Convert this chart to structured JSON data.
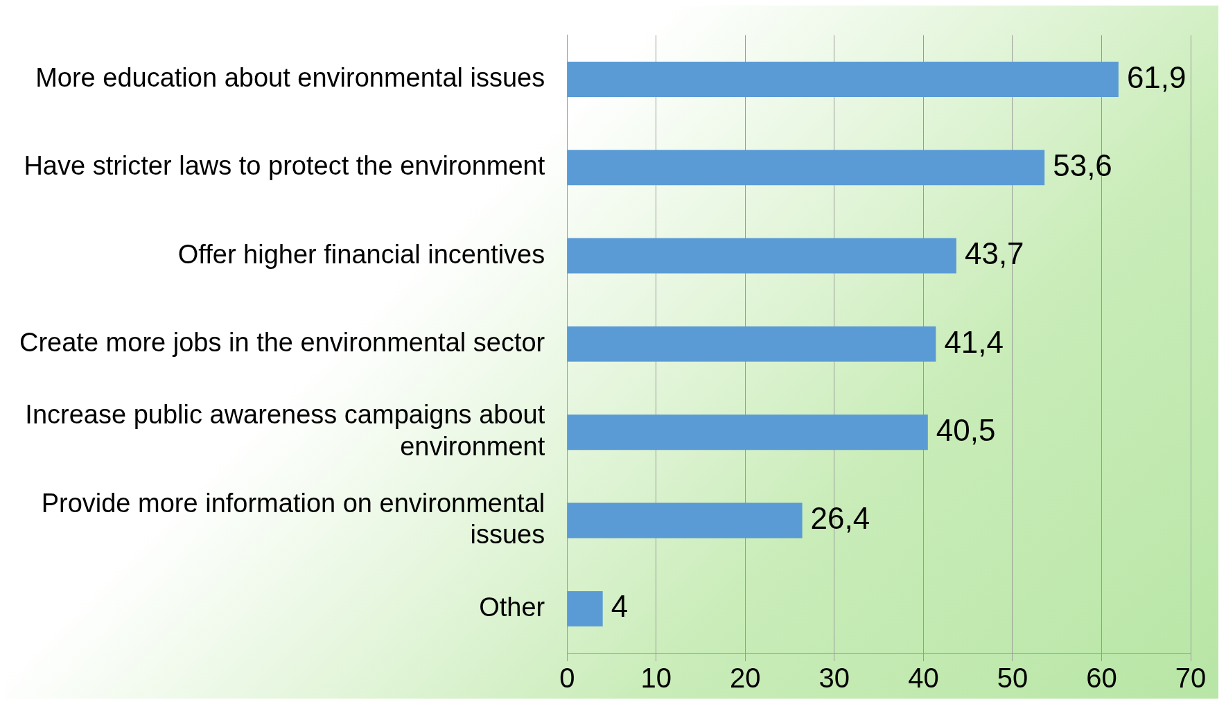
{
  "chart_data": {
    "type": "bar",
    "orientation": "horizontal",
    "categories": [
      "More education about environmental issues",
      "Have stricter laws to protect the environment",
      "Offer higher financial incentives",
      "Create more jobs in the environmental sector",
      "Increase public awareness campaigns about environment",
      "Provide more information on environmental issues",
      "Other"
    ],
    "values": [
      61.9,
      53.6,
      43.7,
      41.4,
      40.5,
      26.4,
      4
    ],
    "value_labels": [
      "61,9",
      "53,6",
      "43,7",
      "41,4",
      "40,5",
      "26,4",
      "4"
    ],
    "color": "#5b9bd5",
    "xlim": [
      0,
      70
    ],
    "xticks": [
      0,
      10,
      20,
      30,
      40,
      50,
      60,
      70
    ],
    "grid": "x"
  }
}
